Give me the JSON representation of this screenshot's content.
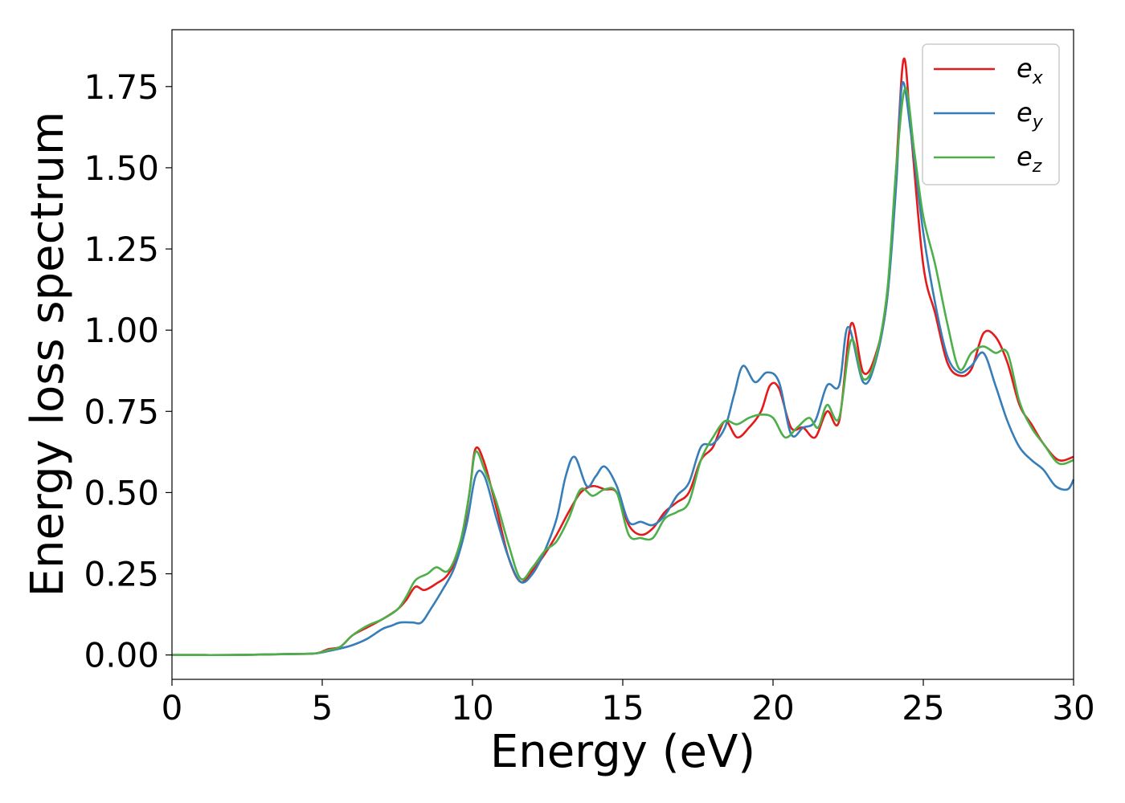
{
  "chart_data": {
    "type": "line",
    "xlabel": "Energy (eV)",
    "ylabel": "Energy loss spectrum",
    "xlim": [
      0,
      30
    ],
    "ylim": [
      -0.075,
      1.925
    ],
    "xticks": [
      0,
      5,
      10,
      15,
      20,
      25,
      30
    ],
    "xtick_labels": [
      "0",
      "5",
      "10",
      "15",
      "20",
      "25",
      "30"
    ],
    "yticks": [
      0,
      0.25,
      0.5,
      0.75,
      1.0,
      1.25,
      1.5,
      1.75
    ],
    "ytick_labels": [
      "0.00",
      "0.25",
      "0.50",
      "0.75",
      "1.00",
      "1.25",
      "1.50",
      "1.75"
    ],
    "grid": false,
    "legend_position": "top-right",
    "series": [
      {
        "name": "e_x",
        "legend_base": "e",
        "legend_sub": "x",
        "color": "#e41a1c",
        "points": [
          [
            0,
            0
          ],
          [
            2,
            0
          ],
          [
            4,
            0.003
          ],
          [
            4.8,
            0.005
          ],
          [
            5.2,
            0.018
          ],
          [
            5.6,
            0.025
          ],
          [
            6,
            0.06
          ],
          [
            6.5,
            0.085
          ],
          [
            7,
            0.11
          ],
          [
            7.5,
            0.14
          ],
          [
            7.8,
            0.17
          ],
          [
            8.1,
            0.21
          ],
          [
            8.4,
            0.2
          ],
          [
            8.8,
            0.22
          ],
          [
            9.2,
            0.25
          ],
          [
            9.6,
            0.33
          ],
          [
            9.9,
            0.5
          ],
          [
            10.1,
            0.635
          ],
          [
            10.4,
            0.59
          ],
          [
            10.8,
            0.45
          ],
          [
            11.2,
            0.3
          ],
          [
            11.6,
            0.225
          ],
          [
            12.0,
            0.26
          ],
          [
            12.4,
            0.31
          ],
          [
            12.8,
            0.37
          ],
          [
            13.2,
            0.44
          ],
          [
            13.6,
            0.5
          ],
          [
            14.0,
            0.52
          ],
          [
            14.4,
            0.51
          ],
          [
            14.8,
            0.5
          ],
          [
            15.2,
            0.4
          ],
          [
            15.6,
            0.37
          ],
          [
            16.0,
            0.39
          ],
          [
            16.4,
            0.44
          ],
          [
            16.8,
            0.47
          ],
          [
            17.2,
            0.5
          ],
          [
            17.6,
            0.6
          ],
          [
            18.0,
            0.64
          ],
          [
            18.4,
            0.72
          ],
          [
            18.8,
            0.67
          ],
          [
            19.2,
            0.7
          ],
          [
            19.6,
            0.75
          ],
          [
            19.9,
            0.83
          ],
          [
            20.2,
            0.82
          ],
          [
            20.6,
            0.7
          ],
          [
            21.0,
            0.7
          ],
          [
            21.4,
            0.67
          ],
          [
            21.8,
            0.75
          ],
          [
            22.2,
            0.72
          ],
          [
            22.6,
            1.02
          ],
          [
            23.0,
            0.87
          ],
          [
            23.4,
            0.92
          ],
          [
            23.8,
            1.1
          ],
          [
            24.1,
            1.5
          ],
          [
            24.35,
            1.835
          ],
          [
            24.6,
            1.6
          ],
          [
            25.0,
            1.2
          ],
          [
            25.4,
            1.05
          ],
          [
            25.8,
            0.9
          ],
          [
            26.2,
            0.86
          ],
          [
            26.6,
            0.88
          ],
          [
            27.0,
            0.99
          ],
          [
            27.4,
            0.98
          ],
          [
            27.8,
            0.9
          ],
          [
            28.2,
            0.77
          ],
          [
            28.6,
            0.71
          ],
          [
            29.0,
            0.65
          ],
          [
            29.5,
            0.6
          ],
          [
            30,
            0.61
          ]
        ]
      },
      {
        "name": "e_y",
        "legend_base": "e",
        "legend_sub": "y",
        "color": "#377eb8",
        "points": [
          [
            0,
            0
          ],
          [
            2,
            0
          ],
          [
            4,
            0.003
          ],
          [
            4.8,
            0.005
          ],
          [
            5.2,
            0.012
          ],
          [
            5.6,
            0.02
          ],
          [
            6,
            0.03
          ],
          [
            6.5,
            0.05
          ],
          [
            7,
            0.08
          ],
          [
            7.3,
            0.09
          ],
          [
            7.6,
            0.1
          ],
          [
            8.0,
            0.1
          ],
          [
            8.3,
            0.1
          ],
          [
            8.6,
            0.14
          ],
          [
            9.0,
            0.2
          ],
          [
            9.4,
            0.27
          ],
          [
            9.8,
            0.4
          ],
          [
            10.1,
            0.55
          ],
          [
            10.4,
            0.55
          ],
          [
            10.8,
            0.42
          ],
          [
            11.2,
            0.3
          ],
          [
            11.6,
            0.225
          ],
          [
            12.0,
            0.25
          ],
          [
            12.4,
            0.32
          ],
          [
            12.8,
            0.42
          ],
          [
            13.1,
            0.55
          ],
          [
            13.4,
            0.61
          ],
          [
            13.8,
            0.52
          ],
          [
            14.1,
            0.55
          ],
          [
            14.4,
            0.58
          ],
          [
            14.8,
            0.52
          ],
          [
            15.2,
            0.41
          ],
          [
            15.6,
            0.41
          ],
          [
            16.0,
            0.4
          ],
          [
            16.4,
            0.43
          ],
          [
            16.8,
            0.49
          ],
          [
            17.2,
            0.53
          ],
          [
            17.6,
            0.64
          ],
          [
            18.0,
            0.65
          ],
          [
            18.4,
            0.7
          ],
          [
            18.7,
            0.8
          ],
          [
            19.0,
            0.89
          ],
          [
            19.4,
            0.84
          ],
          [
            19.8,
            0.87
          ],
          [
            20.2,
            0.84
          ],
          [
            20.6,
            0.68
          ],
          [
            21.0,
            0.7
          ],
          [
            21.4,
            0.72
          ],
          [
            21.8,
            0.83
          ],
          [
            22.2,
            0.83
          ],
          [
            22.5,
            1.01
          ],
          [
            23.0,
            0.84
          ],
          [
            23.4,
            0.9
          ],
          [
            23.8,
            1.1
          ],
          [
            24.1,
            1.45
          ],
          [
            24.3,
            1.76
          ],
          [
            24.6,
            1.6
          ],
          [
            25.0,
            1.3
          ],
          [
            25.4,
            1.08
          ],
          [
            25.8,
            0.92
          ],
          [
            26.2,
            0.87
          ],
          [
            26.6,
            0.89
          ],
          [
            27.0,
            0.93
          ],
          [
            27.4,
            0.83
          ],
          [
            27.8,
            0.72
          ],
          [
            28.2,
            0.64
          ],
          [
            28.6,
            0.6
          ],
          [
            29.0,
            0.57
          ],
          [
            29.4,
            0.52
          ],
          [
            29.8,
            0.51
          ],
          [
            30,
            0.54
          ]
        ]
      },
      {
        "name": "e_z",
        "legend_base": "e",
        "legend_sub": "z",
        "color": "#4daf4a",
        "points": [
          [
            0,
            0
          ],
          [
            2,
            0
          ],
          [
            4,
            0.003
          ],
          [
            4.8,
            0.005
          ],
          [
            5.2,
            0.015
          ],
          [
            5.6,
            0.025
          ],
          [
            6,
            0.06
          ],
          [
            6.5,
            0.09
          ],
          [
            7,
            0.11
          ],
          [
            7.5,
            0.14
          ],
          [
            7.8,
            0.18
          ],
          [
            8.1,
            0.23
          ],
          [
            8.5,
            0.25
          ],
          [
            8.8,
            0.27
          ],
          [
            9.2,
            0.26
          ],
          [
            9.6,
            0.35
          ],
          [
            9.9,
            0.5
          ],
          [
            10.1,
            0.625
          ],
          [
            10.4,
            0.57
          ],
          [
            10.8,
            0.47
          ],
          [
            11.2,
            0.34
          ],
          [
            11.6,
            0.235
          ],
          [
            12.0,
            0.27
          ],
          [
            12.4,
            0.32
          ],
          [
            12.8,
            0.35
          ],
          [
            13.2,
            0.42
          ],
          [
            13.6,
            0.51
          ],
          [
            14.0,
            0.49
          ],
          [
            14.4,
            0.51
          ],
          [
            14.8,
            0.5
          ],
          [
            15.2,
            0.37
          ],
          [
            15.6,
            0.36
          ],
          [
            16.0,
            0.36
          ],
          [
            16.4,
            0.42
          ],
          [
            16.8,
            0.44
          ],
          [
            17.2,
            0.47
          ],
          [
            17.6,
            0.6
          ],
          [
            18.0,
            0.67
          ],
          [
            18.4,
            0.72
          ],
          [
            18.8,
            0.71
          ],
          [
            19.2,
            0.73
          ],
          [
            19.6,
            0.74
          ],
          [
            20.0,
            0.73
          ],
          [
            20.4,
            0.67
          ],
          [
            20.8,
            0.7
          ],
          [
            21.2,
            0.73
          ],
          [
            21.5,
            0.7
          ],
          [
            21.8,
            0.77
          ],
          [
            22.2,
            0.73
          ],
          [
            22.6,
            0.97
          ],
          [
            23.0,
            0.85
          ],
          [
            23.4,
            0.91
          ],
          [
            23.8,
            1.12
          ],
          [
            24.1,
            1.5
          ],
          [
            24.4,
            1.745
          ],
          [
            24.7,
            1.55
          ],
          [
            25.0,
            1.35
          ],
          [
            25.4,
            1.2
          ],
          [
            25.8,
            1.02
          ],
          [
            26.2,
            0.88
          ],
          [
            26.6,
            0.93
          ],
          [
            27.0,
            0.95
          ],
          [
            27.4,
            0.93
          ],
          [
            27.8,
            0.93
          ],
          [
            28.2,
            0.78
          ],
          [
            28.6,
            0.7
          ],
          [
            29.0,
            0.65
          ],
          [
            29.5,
            0.59
          ],
          [
            30,
            0.6
          ]
        ]
      }
    ]
  }
}
